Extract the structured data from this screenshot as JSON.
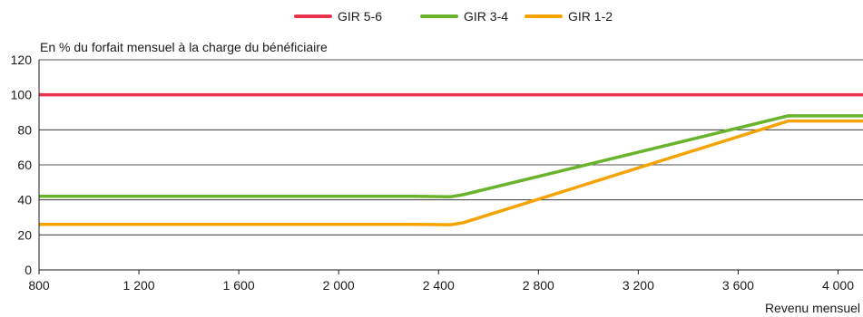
{
  "chart_data": {
    "type": "line",
    "title": "",
    "ylabel": "En % du forfait mensuel à la charge du bénéficiaire",
    "xlabel": "Revenu mensuel",
    "xlim": [
      800,
      4100
    ],
    "ylim": [
      0,
      120
    ],
    "x_ticks": [
      800,
      1200,
      1600,
      2000,
      2400,
      2800,
      3200,
      3600,
      4000
    ],
    "x_tick_labels": [
      "800",
      "1 200",
      "1 600",
      "2 000",
      "2 400",
      "2 800",
      "3 200",
      "3 600",
      "4 000"
    ],
    "y_ticks": [
      0,
      20,
      40,
      60,
      80,
      100,
      120
    ],
    "y_tick_labels": [
      "0",
      "20",
      "40",
      "60",
      "80",
      "100",
      "120"
    ],
    "grid": "horizontal",
    "legend_position": "top-center",
    "series": [
      {
        "name": "GIR 5-6",
        "color": "#e8344e",
        "points": [
          [
            800,
            100
          ],
          [
            4100,
            100
          ]
        ]
      },
      {
        "name": "GIR 3-4",
        "color": "#6ab42d",
        "points": [
          [
            800,
            42
          ],
          [
            2300,
            42
          ],
          [
            2450,
            41.8
          ],
          [
            2500,
            43
          ],
          [
            3800,
            88
          ],
          [
            4100,
            88
          ]
        ]
      },
      {
        "name": "GIR 1-2",
        "color": "#f5a300",
        "points": [
          [
            800,
            26
          ],
          [
            2300,
            26
          ],
          [
            2450,
            25.8
          ],
          [
            2500,
            27
          ],
          [
            3800,
            85
          ],
          [
            4100,
            85
          ]
        ]
      }
    ]
  }
}
